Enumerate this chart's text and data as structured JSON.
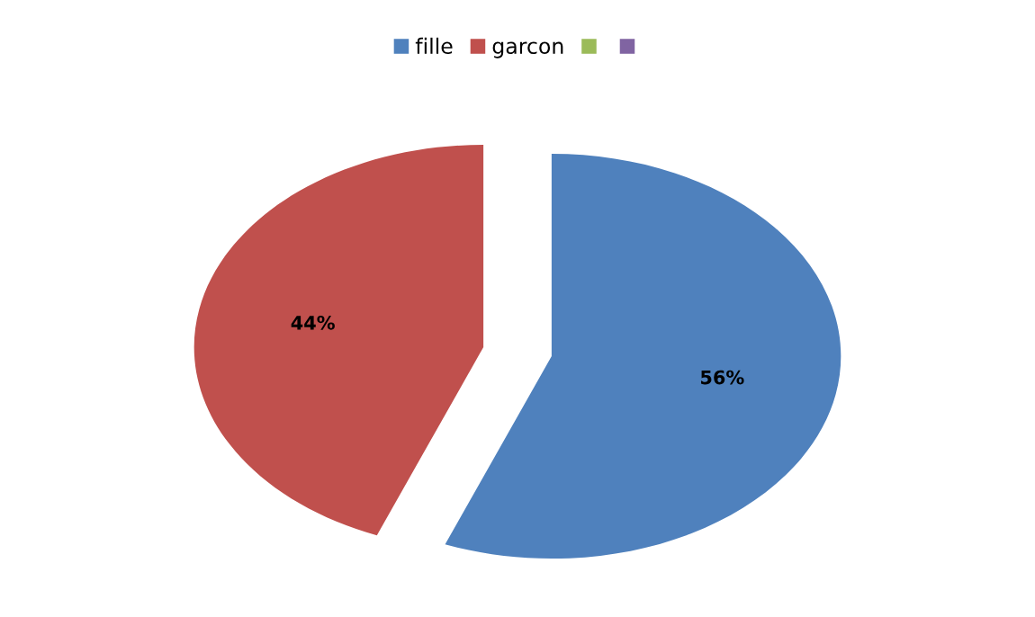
{
  "chart_data": {
    "type": "pie",
    "categories": [
      "fille",
      "garcon",
      null,
      null
    ],
    "values": [
      56,
      44,
      0,
      0
    ],
    "colors": [
      "#4f81bd",
      "#c0504d",
      "#9bbb59",
      "#8064a2"
    ],
    "value_labels": [
      "56%",
      "44%",
      null,
      null
    ],
    "legend": "top"
  }
}
